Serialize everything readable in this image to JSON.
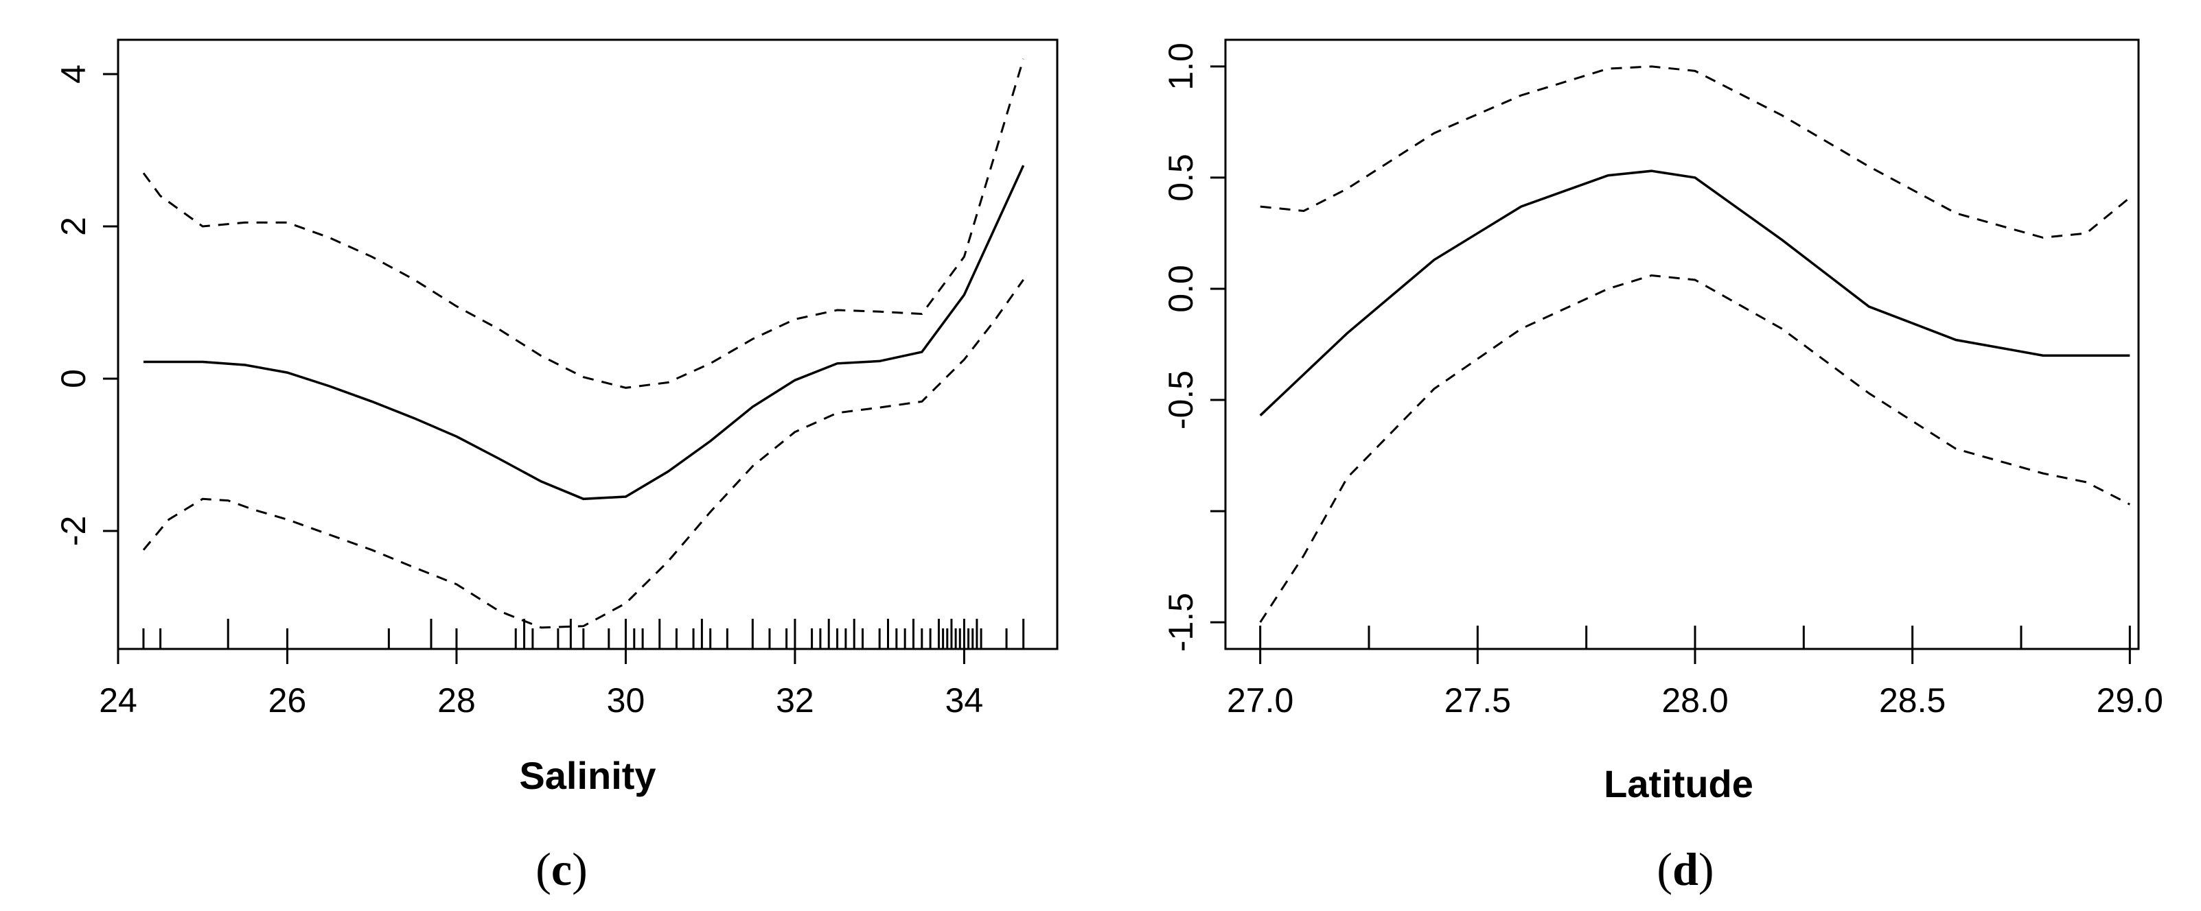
{
  "chart_data": [
    {
      "type": "line",
      "panel_label": "c",
      "xlabel": "Salinity",
      "ylabel": "",
      "xlim": [
        24,
        35.1
      ],
      "ylim": [
        -3.55,
        4.45
      ],
      "x_ticks": [
        24,
        26,
        28,
        30,
        32,
        34
      ],
      "x_tick_labels": [
        "24",
        "26",
        "28",
        "30",
        "32",
        "34"
      ],
      "y_ticks": [
        -2,
        0,
        2,
        4
      ],
      "y_tick_labels": [
        "-2",
        "0",
        "2",
        "4"
      ],
      "series": [
        {
          "role": "fit",
          "x": [
            24.3,
            25.0,
            25.5,
            26.0,
            26.5,
            27.0,
            27.5,
            28.0,
            28.5,
            29.0,
            29.5,
            30.0,
            30.5,
            31.0,
            31.5,
            32.0,
            32.5,
            33.0,
            33.5,
            34.0,
            34.35,
            34.7
          ],
          "y": [
            0.22,
            0.22,
            0.18,
            0.08,
            -0.1,
            -0.3,
            -0.52,
            -0.76,
            -1.05,
            -1.35,
            -1.58,
            -1.55,
            -1.22,
            -0.82,
            -0.37,
            -0.02,
            0.2,
            0.23,
            0.35,
            1.1,
            1.95,
            2.8
          ]
        },
        {
          "role": "upper-ci",
          "x": [
            24.3,
            24.5,
            25.0,
            25.5,
            26.0,
            26.5,
            27.0,
            27.5,
            28.0,
            28.5,
            29.0,
            29.5,
            30.0,
            30.5,
            31.0,
            31.5,
            32.0,
            32.5,
            33.0,
            33.5,
            34.0,
            34.35,
            34.7
          ],
          "y": [
            2.7,
            2.4,
            2.0,
            2.05,
            2.05,
            1.85,
            1.6,
            1.3,
            0.95,
            0.65,
            0.3,
            0.02,
            -0.12,
            -0.05,
            0.2,
            0.52,
            0.78,
            0.9,
            0.88,
            0.85,
            1.6,
            2.9,
            4.2
          ]
        },
        {
          "role": "lower-ci",
          "x": [
            24.3,
            24.6,
            25.0,
            25.3,
            25.6,
            26.0,
            26.5,
            27.0,
            27.5,
            28.0,
            28.5,
            29.0,
            29.5,
            30.0,
            30.5,
            31.0,
            31.5,
            32.0,
            32.5,
            33.0,
            33.5,
            34.0,
            34.35,
            34.7
          ],
          "y": [
            -2.25,
            -1.85,
            -1.58,
            -1.6,
            -1.72,
            -1.85,
            -2.05,
            -2.25,
            -2.48,
            -2.7,
            -3.05,
            -3.27,
            -3.25,
            -2.95,
            -2.4,
            -1.75,
            -1.15,
            -0.7,
            -0.45,
            -0.38,
            -0.3,
            0.25,
            0.75,
            1.3
          ]
        }
      ],
      "rug": [
        24.0,
        24.3,
        24.5,
        25.3,
        26.0,
        27.2,
        27.7,
        28.0,
        28.7,
        28.8,
        28.9,
        29.2,
        29.35,
        29.5,
        29.8,
        30.0,
        30.1,
        30.2,
        30.4,
        30.6,
        30.8,
        30.9,
        31.0,
        31.2,
        31.5,
        31.7,
        31.9,
        32.0,
        32.2,
        32.3,
        32.4,
        32.5,
        32.6,
        32.7,
        32.8,
        33.0,
        33.1,
        33.2,
        33.3,
        33.4,
        33.5,
        33.6,
        33.7,
        33.75,
        33.8,
        33.85,
        33.9,
        33.95,
        34.0,
        34.05,
        34.1,
        34.15,
        34.2,
        34.5,
        34.7
      ]
    },
    {
      "type": "line",
      "panel_label": "d",
      "xlabel": "Latitude",
      "ylabel": "",
      "xlim": [
        26.92,
        29.02
      ],
      "ylim": [
        -1.62,
        1.12
      ],
      "x_ticks": [
        27.0,
        27.5,
        28.0,
        28.5,
        29.0
      ],
      "x_tick_labels": [
        "27.0",
        "27.5",
        "28.0",
        "28.5",
        "29.0"
      ],
      "x_minor_ticks": [
        27.25,
        27.75,
        28.25,
        28.75
      ],
      "y_ticks": [
        -1.5,
        -1.0,
        -0.5,
        0.0,
        0.5,
        1.0
      ],
      "y_tick_labels": [
        "-1.5",
        "",
        "-0.5",
        "0.0",
        "0.5",
        "1.0"
      ],
      "series": [
        {
          "role": "fit",
          "x": [
            27.0,
            27.2,
            27.4,
            27.6,
            27.8,
            27.9,
            28.0,
            28.2,
            28.4,
            28.6,
            28.8,
            29.0
          ],
          "y": [
            -0.57,
            -0.2,
            0.13,
            0.37,
            0.51,
            0.53,
            0.5,
            0.22,
            -0.08,
            -0.23,
            -0.3,
            -0.3
          ]
        },
        {
          "role": "upper-ci",
          "x": [
            27.0,
            27.1,
            27.2,
            27.4,
            27.6,
            27.8,
            27.9,
            28.0,
            28.2,
            28.4,
            28.6,
            28.8,
            28.9,
            29.0
          ],
          "y": [
            0.37,
            0.35,
            0.45,
            0.7,
            0.87,
            0.99,
            1.0,
            0.98,
            0.78,
            0.55,
            0.34,
            0.23,
            0.25,
            0.41
          ]
        },
        {
          "role": "lower-ci",
          "x": [
            27.0,
            27.1,
            27.2,
            27.4,
            27.6,
            27.8,
            27.9,
            28.0,
            28.2,
            28.4,
            28.6,
            28.8,
            28.9,
            29.0
          ],
          "y": [
            -1.5,
            -1.2,
            -0.85,
            -0.45,
            -0.18,
            0.0,
            0.06,
            0.04,
            -0.18,
            -0.47,
            -0.72,
            -0.83,
            -0.87,
            -0.97
          ]
        }
      ]
    }
  ]
}
